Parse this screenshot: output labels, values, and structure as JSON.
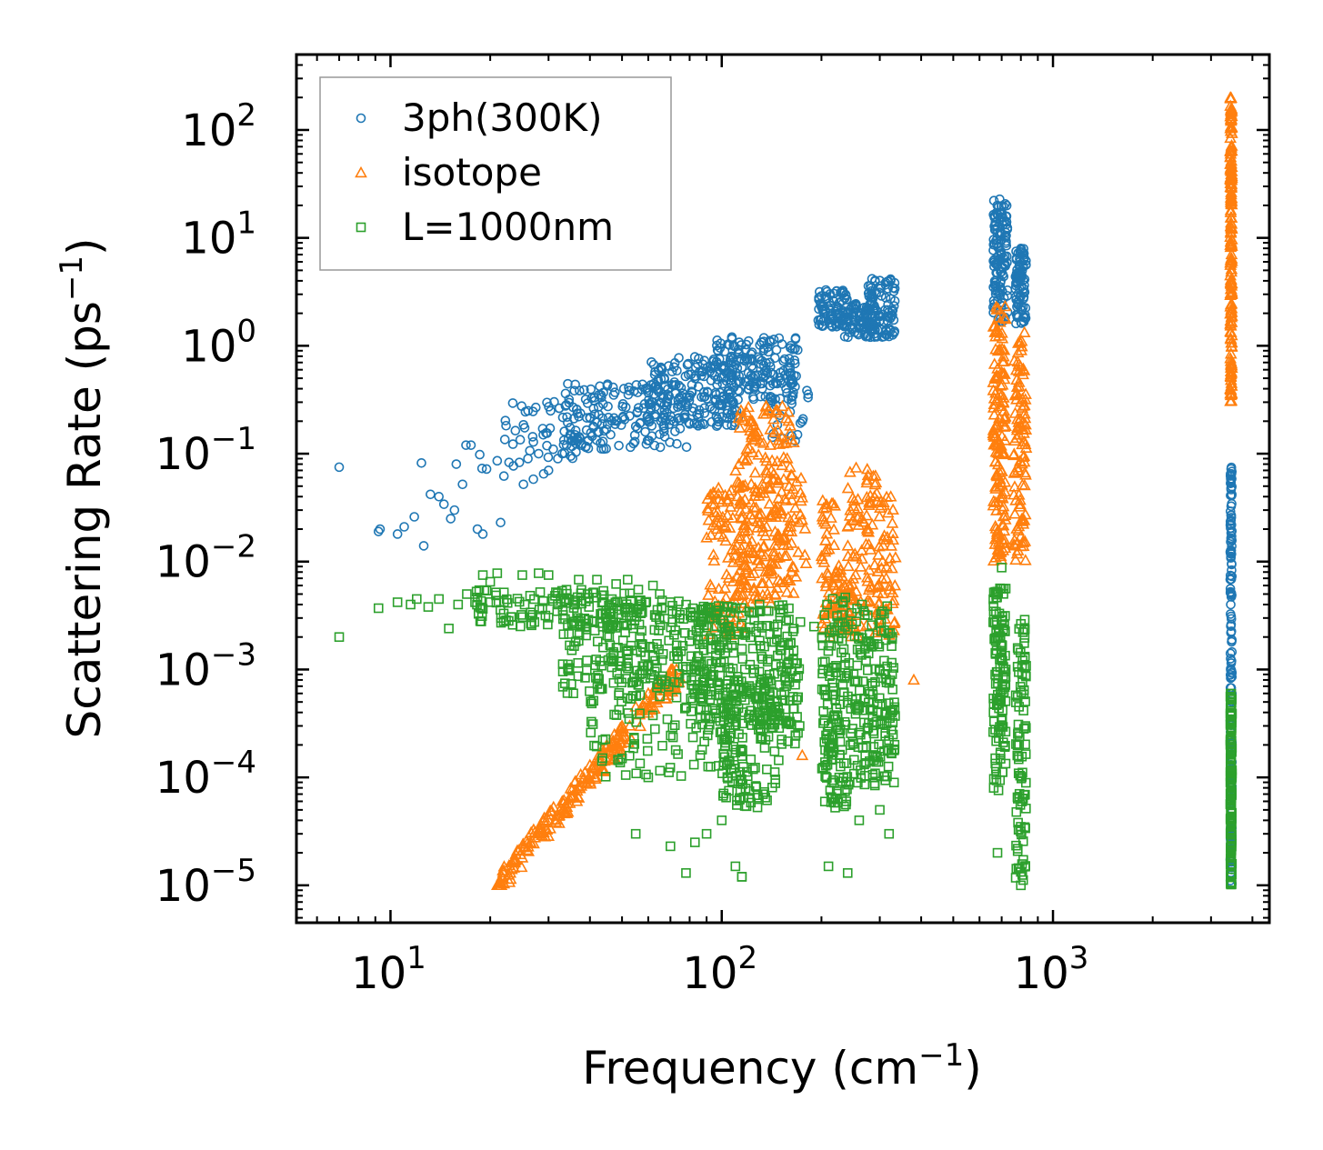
{
  "chart_data": {
    "type": "scatter",
    "title": "",
    "xlabel": "Frequency (cm",
    "xlabel_sup": "−1",
    "xlabel_end": ")",
    "ylabel": "Scattering Rate (ps",
    "ylabel_sup": "−1",
    "ylabel_end": ")",
    "xscale": "log",
    "yscale": "log",
    "xlim": [
      5.2,
      4500
    ],
    "ylim": [
      4.5e-06,
      500
    ],
    "x_ticks": [
      {
        "value": 10,
        "base": "10",
        "exp": "1"
      },
      {
        "value": 100,
        "base": "10",
        "exp": "2"
      },
      {
        "value": 1000,
        "base": "10",
        "exp": "3"
      }
    ],
    "y_ticks": [
      {
        "value": 1e-05,
        "base": "10",
        "exp": "−5"
      },
      {
        "value": 0.0001,
        "base": "10",
        "exp": "−4"
      },
      {
        "value": 0.001,
        "base": "10",
        "exp": "−3"
      },
      {
        "value": 0.01,
        "base": "10",
        "exp": "−2"
      },
      {
        "value": 0.1,
        "base": "10",
        "exp": "−1"
      },
      {
        "value": 1,
        "base": "10",
        "exp": "0"
      },
      {
        "value": 10,
        "base": "10",
        "exp": "1"
      },
      {
        "value": 100,
        "base": "10",
        "exp": "2"
      }
    ],
    "legend_position": "top-left",
    "series": [
      {
        "name": "3ph(300K)",
        "marker": "circle",
        "color": "#1f77b4",
        "points": [
          [
            7,
            0.075
          ],
          [
            9.2,
            0.019
          ],
          [
            9.3,
            0.02
          ],
          [
            10.5,
            0.018
          ],
          [
            11,
            0.021
          ],
          [
            11.8,
            0.026
          ],
          [
            12.4,
            0.082
          ],
          [
            12.6,
            0.014
          ],
          [
            13.2,
            0.042
          ],
          [
            14,
            0.04
          ],
          [
            14.5,
            0.034
          ],
          [
            15.2,
            0.025
          ],
          [
            15.6,
            0.03
          ],
          [
            15.8,
            0.08
          ],
          [
            16.5,
            0.052
          ],
          [
            16.9,
            0.12
          ],
          [
            17.5,
            0.12
          ],
          [
            18.3,
            0.02
          ],
          [
            18.6,
            0.098
          ],
          [
            18.9,
            0.073
          ],
          [
            19,
            0.018
          ],
          [
            19.5,
            0.072
          ],
          [
            21,
            0.086
          ],
          [
            21.5,
            0.023
          ],
          [
            22,
            0.062
          ],
          [
            22.8,
            0.083
          ],
          [
            23.5,
            0.077
          ],
          [
            24.5,
            0.083
          ],
          [
            25.2,
            0.052
          ],
          [
            26,
            0.09
          ],
          [
            27,
            0.058
          ],
          [
            28,
            0.1
          ],
          [
            29,
            0.065
          ],
          [
            30,
            0.07
          ],
          [
            31,
            0.11
          ],
          [
            32,
            0.09
          ],
          [
            33,
            0.1
          ],
          [
            34,
            0.12
          ],
          [
            35,
            0.095
          ]
        ],
        "bands": [
          {
            "x": [
              22,
              45
            ],
            "y": [
              0.09,
              0.32
            ],
            "n": 60
          },
          {
            "x": [
              33,
              80
            ],
            "y": [
              0.11,
              0.45
            ],
            "n": 160
          },
          {
            "x": [
              60,
              115
            ],
            "y": [
              0.18,
              0.8
            ],
            "n": 180
          },
          {
            "x": [
              95,
              170
            ],
            "y": [
              0.3,
              1.25
            ],
            "n": 170
          },
          {
            "x": [
              140,
              185
            ],
            "y": [
              0.13,
              0.5
            ],
            "n": 25
          },
          {
            "x": [
              195,
              240
            ],
            "y": [
              1.5,
              3.3
            ],
            "n": 90
          },
          {
            "x": [
              235,
              290
            ],
            "y": [
              1.2,
              2.6
            ],
            "n": 80
          },
          {
            "x": [
              275,
              335
            ],
            "y": [
              1.2,
              4.2
            ],
            "n": 90
          },
          {
            "x": [
              660,
              730
            ],
            "y": [
              1.6,
              23
            ],
            "n": 130
          },
          {
            "x": [
              770,
              830
            ],
            "y": [
              1.6,
              8
            ],
            "n": 90
          },
          {
            "x": [
              3430,
              3470
            ],
            "y": [
              1e-05,
              0.075
            ],
            "n": 170
          }
        ]
      },
      {
        "name": "isotope",
        "marker": "triangle",
        "color": "#ff7f0e",
        "points": [
          [
            21,
            1e-05
          ],
          [
            23,
            1.3e-05
          ],
          [
            25,
            1.8e-05
          ],
          [
            28,
            3e-05
          ],
          [
            30,
            4e-05
          ],
          [
            33,
            6e-05
          ],
          [
            36,
            9e-05
          ],
          [
            40,
            0.00013
          ],
          [
            45,
            0.0002
          ],
          [
            50,
            0.0003
          ],
          [
            55,
            0.00045
          ],
          [
            60,
            0.0006
          ],
          [
            175,
            0.00016
          ],
          [
            380,
            0.0008
          ]
        ],
        "bands": [
          {
            "x": [
              21,
              75
            ],
            "y": [
              1e-05,
              0.001
            ],
            "n": 220,
            "diagonal": true
          },
          {
            "x": [
              90,
              120
            ],
            "y": [
              0.002,
              0.05
            ],
            "n": 110
          },
          {
            "x": [
              110,
              165
            ],
            "y": [
              0.004,
              0.28
            ],
            "n": 200
          },
          {
            "x": [
              120,
              180
            ],
            "y": [
              0.006,
              0.06
            ],
            "n": 60
          },
          {
            "x": [
              200,
              220
            ],
            "y": [
              0.002,
              0.04
            ],
            "n": 50
          },
          {
            "x": [
              220,
              250
            ],
            "y": [
              0.002,
              0.01
            ],
            "n": 40
          },
          {
            "x": [
              240,
              300
            ],
            "y": [
              0.002,
              0.075
            ],
            "n": 100
          },
          {
            "x": [
              295,
              335
            ],
            "y": [
              0.002,
              0.04
            ],
            "n": 50
          },
          {
            "x": [
              660,
              720
            ],
            "y": [
              0.01,
              2.5
            ],
            "n": 150
          },
          {
            "x": [
              760,
              830
            ],
            "y": [
              0.01,
              1.4
            ],
            "n": 100
          },
          {
            "x": [
              3430,
              3470
            ],
            "y": [
              0.3,
              200
            ],
            "n": 180
          }
        ]
      },
      {
        "name": "L=1000nm",
        "marker": "square",
        "color": "#2ca02c",
        "points": [
          [
            7,
            0.002
          ],
          [
            9.2,
            0.0037
          ],
          [
            10.5,
            0.0042
          ],
          [
            11.5,
            0.004
          ],
          [
            12,
            0.0045
          ],
          [
            13,
            0.0038
          ],
          [
            14,
            0.0045
          ],
          [
            15,
            0.0024
          ],
          [
            16,
            0.004
          ],
          [
            17,
            0.005
          ],
          [
            18,
            0.0042
          ],
          [
            19,
            0.0075
          ],
          [
            20,
            0.0065
          ],
          [
            21,
            0.0078
          ],
          [
            22,
            0.0042
          ],
          [
            25,
            0.0075
          ],
          [
            28,
            0.0078
          ],
          [
            30,
            0.0075
          ],
          [
            32,
            0.004
          ],
          [
            37,
            0.0068
          ],
          [
            42,
            0.0068
          ],
          [
            48,
            0.0062
          ],
          [
            52,
            0.0068
          ],
          [
            56,
            0.0055
          ],
          [
            62,
            0.006
          ],
          [
            65,
            0.005
          ],
          [
            60,
            0.0001
          ],
          [
            50,
            0.00015
          ],
          [
            55,
            3e-05
          ],
          [
            70,
            2.3e-05
          ],
          [
            78,
            1.3e-05
          ],
          [
            83,
            2.5e-05
          ],
          [
            90,
            3e-05
          ],
          [
            100,
            4e-05
          ],
          [
            110,
            1.5e-05
          ],
          [
            115,
            1.2e-05
          ],
          [
            115,
            1.2e-05
          ],
          [
            130,
            0.004
          ],
          [
            150,
            0.003
          ],
          [
            190,
            0.0025
          ],
          [
            210,
            1.5e-05
          ],
          [
            240,
            1.3e-05
          ],
          [
            260,
            4e-05
          ],
          [
            300,
            5e-05
          ],
          [
            320,
            3e-05
          ],
          [
            700,
            0.0088
          ],
          [
            720,
            0.001
          ],
          [
            800,
            1e-05
          ],
          [
            680,
            2e-05
          ]
        ],
        "bands": [
          {
            "x": [
              18,
              60
            ],
            "y": [
              0.0025,
              0.0055
            ],
            "n": 120
          },
          {
            "x": [
              33,
              90
            ],
            "y": [
              0.0006,
              0.0045
            ],
            "n": 160
          },
          {
            "x": [
              40,
              110
            ],
            "y": [
              0.0001,
              0.004
            ],
            "n": 200
          },
          {
            "x": [
              80,
              170
            ],
            "y": [
              0.0003,
              0.004
            ],
            "n": 220
          },
          {
            "x": [
              100,
              150
            ],
            "y": [
              5e-05,
              0.0008
            ],
            "n": 120
          },
          {
            "x": [
              130,
              175
            ],
            "y": [
              0.0002,
              0.003
            ],
            "n": 60
          },
          {
            "x": [
              200,
              240
            ],
            "y": [
              5e-05,
              0.005
            ],
            "n": 140
          },
          {
            "x": [
              240,
              335
            ],
            "y": [
              8e-05,
              0.004
            ],
            "n": 180
          },
          {
            "x": [
              660,
              720
            ],
            "y": [
              7e-05,
              0.006
            ],
            "n": 120
          },
          {
            "x": [
              770,
              830
            ],
            "y": [
              1.1e-05,
              0.003
            ],
            "n": 90
          },
          {
            "x": [
              3430,
              3470
            ],
            "y": [
              1e-05,
              0.0006
            ],
            "n": 150
          }
        ]
      }
    ]
  }
}
